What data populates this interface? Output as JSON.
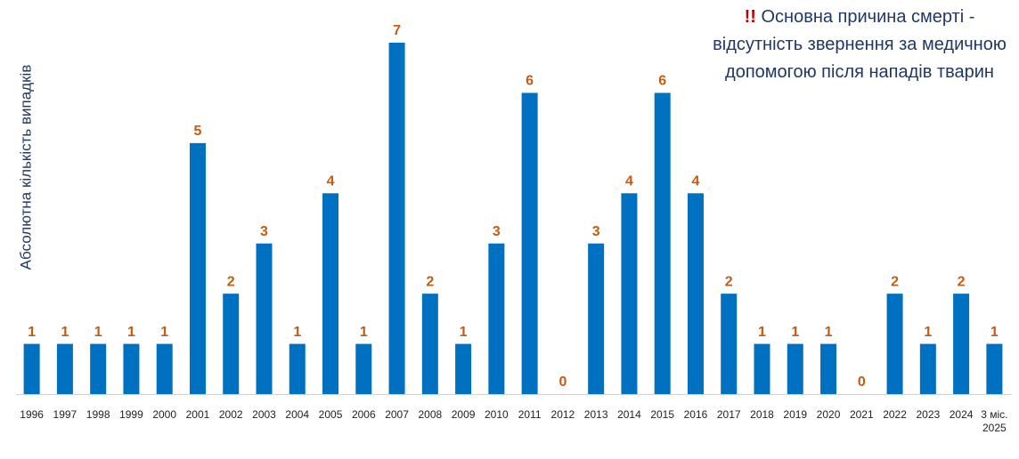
{
  "chart_data": {
    "type": "bar",
    "y_label": "Абсолютна кількість випадків",
    "annotation": {
      "marker": "!!",
      "text": "Основна причина смерті - відсутність звернення за медичною допомогою після нападів тварин"
    },
    "categories": [
      "1996",
      "1997",
      "1998",
      "1999",
      "2000",
      "2001",
      "2002",
      "2003",
      "2004",
      "2005",
      "2006",
      "2007",
      "2008",
      "2009",
      "2010",
      "2011",
      "2012",
      "2013",
      "2014",
      "2015",
      "2016",
      "2017",
      "2018",
      "2019",
      "2020",
      "2021",
      "2022",
      "2023",
      "2024",
      "3 міс. 2025"
    ],
    "values": [
      1,
      1,
      1,
      1,
      1,
      5,
      2,
      3,
      1,
      4,
      1,
      7,
      2,
      1,
      3,
      6,
      0,
      3,
      4,
      6,
      4,
      2,
      1,
      1,
      1,
      0,
      2,
      1,
      2,
      1
    ],
    "color": "#0070c0",
    "label_color": "#c55a11",
    "ylim": [
      0,
      7
    ]
  }
}
